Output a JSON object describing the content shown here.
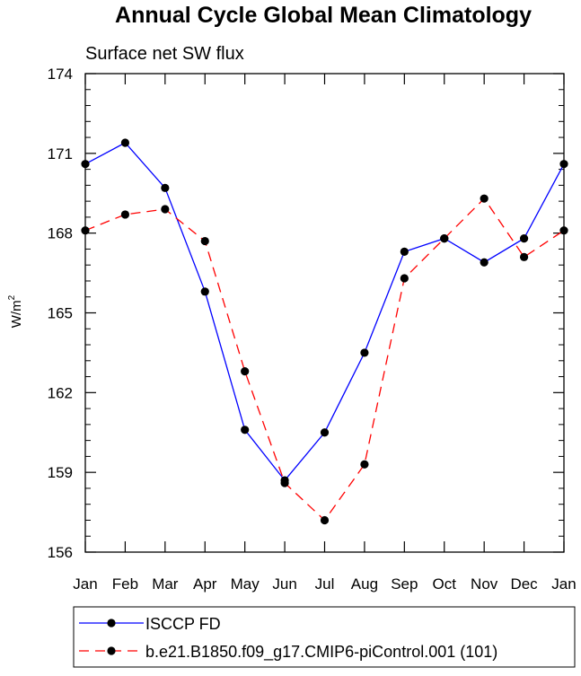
{
  "chart_data": {
    "type": "line",
    "title": "Annual Cycle Global Mean Climatology",
    "subtitle": "Surface net SW flux",
    "xlabel": "",
    "ylabel_base": "W/m",
    "ylabel_exp": "2",
    "ylim": [
      156,
      174
    ],
    "yticks": [
      "156",
      "159",
      "162",
      "165",
      "168",
      "171",
      "174"
    ],
    "categories": [
      "Jan",
      "Feb",
      "Mar",
      "Apr",
      "May",
      "Jun",
      "Jul",
      "Aug",
      "Sep",
      "Oct",
      "Nov",
      "Dec",
      "Jan"
    ],
    "series": [
      {
        "name": "ISCCP FD",
        "color": "#0000ff",
        "dash": "solid",
        "values": [
          170.6,
          171.4,
          169.7,
          165.8,
          160.6,
          158.7,
          160.5,
          163.5,
          167.3,
          167.8,
          166.9,
          167.8,
          170.6
        ]
      },
      {
        "name": "b.e21.B1850.f09_g17.CMIP6-piControl.001 (101)",
        "color": "#ff0000",
        "dash": "dashed",
        "values": [
          168.1,
          168.7,
          168.9,
          167.7,
          162.8,
          158.6,
          157.2,
          159.3,
          166.3,
          167.8,
          169.3,
          167.1,
          168.1
        ]
      }
    ]
  }
}
